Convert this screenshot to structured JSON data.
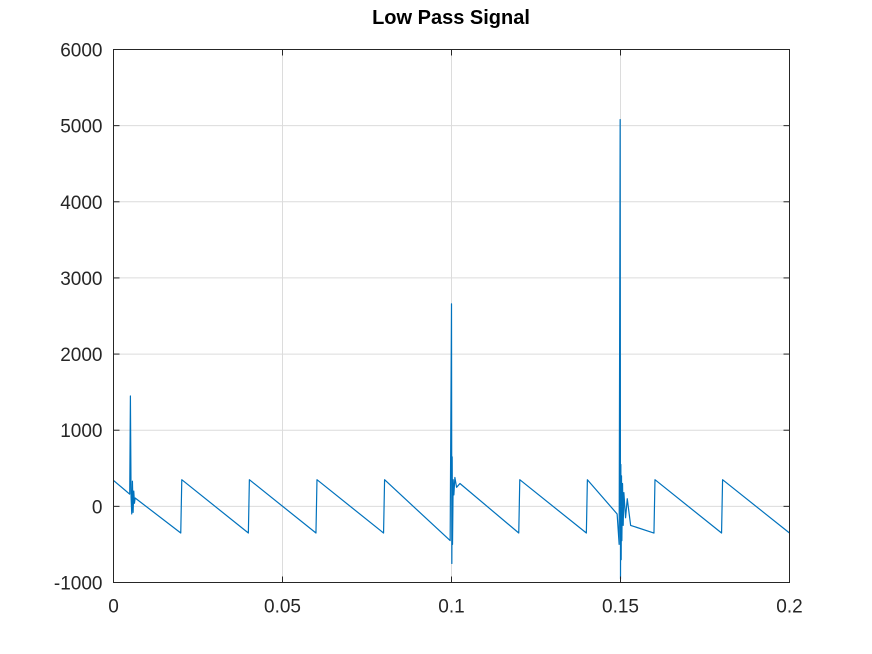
{
  "chart_data": {
    "type": "line",
    "title": "Low Pass Signal",
    "xlabel": "",
    "ylabel": "",
    "xlim": [
      0,
      0.2
    ],
    "ylim": [
      -1000,
      6000
    ],
    "grid": true,
    "legend": "none",
    "x_ticks": [
      0,
      0.05,
      0.1,
      0.15,
      0.2
    ],
    "x_tick_labels": [
      "0",
      "0.05",
      "0.1",
      "0.15",
      "0.2"
    ],
    "y_ticks": [
      -1000,
      0,
      1000,
      2000,
      3000,
      4000,
      5000,
      6000
    ],
    "y_tick_labels": [
      "-1000",
      "0",
      "1000",
      "2000",
      "3000",
      "4000",
      "5000",
      "6000"
    ],
    "series": [
      {
        "color": "#0072bd",
        "x": [
          0,
          0.0048,
          0.005,
          0.0052,
          0.0054,
          0.0056,
          0.0058,
          0.006,
          0.0062,
          0.0064,
          0.0199,
          0.0202,
          0.0399,
          0.0402,
          0.0599,
          0.0602,
          0.0799,
          0.0802,
          0.0996,
          0.1,
          0.1001,
          0.1002,
          0.1003,
          0.1005,
          0.1007,
          0.101,
          0.1015,
          0.1025,
          0.1199,
          0.1202,
          0.1399,
          0.1402,
          0.149,
          0.1496,
          0.1499,
          0.15,
          0.1501,
          0.1502,
          0.1503,
          0.1504,
          0.1506,
          0.1508,
          0.151,
          0.1515,
          0.152,
          0.153,
          0.1599,
          0.1602,
          0.1799,
          0.1802,
          0.2
        ],
        "y": [
          340,
          160,
          1450,
          120,
          -100,
          330,
          -80,
          200,
          40,
          110,
          -350,
          350,
          -350,
          350,
          -350,
          350,
          -350,
          350,
          -450,
          2660,
          -750,
          650,
          -500,
          350,
          150,
          380,
          250,
          300,
          -350,
          350,
          -350,
          350,
          -100,
          -500,
          5080,
          -950,
          550,
          -700,
          400,
          -450,
          300,
          -250,
          180,
          -150,
          100,
          -250,
          -350,
          350,
          -350,
          350,
          -350
        ]
      }
    ]
  }
}
